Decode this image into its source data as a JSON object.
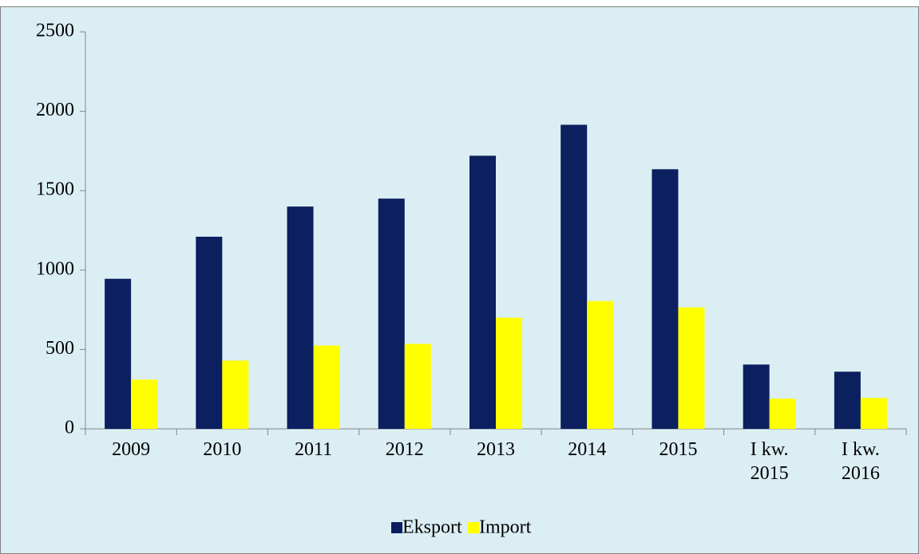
{
  "chart_data": {
    "type": "bar",
    "categories": [
      "2009",
      "2010",
      "2011",
      "2012",
      "2013",
      "2014",
      "2015",
      "I kw. 2015",
      "I kw. 2016"
    ],
    "series": [
      {
        "name": "Eksport",
        "color": "#0c1f5e",
        "values": [
          945,
          1210,
          1400,
          1450,
          1720,
          1915,
          1635,
          405,
          360
        ]
      },
      {
        "name": "Import",
        "color": "#ffff00",
        "values": [
          310,
          430,
          525,
          535,
          700,
          805,
          765,
          190,
          195
        ]
      }
    ],
    "ylim": [
      0,
      2500
    ],
    "yticks": [
      0,
      500,
      1000,
      1500,
      2000,
      2500
    ],
    "grid": false
  }
}
